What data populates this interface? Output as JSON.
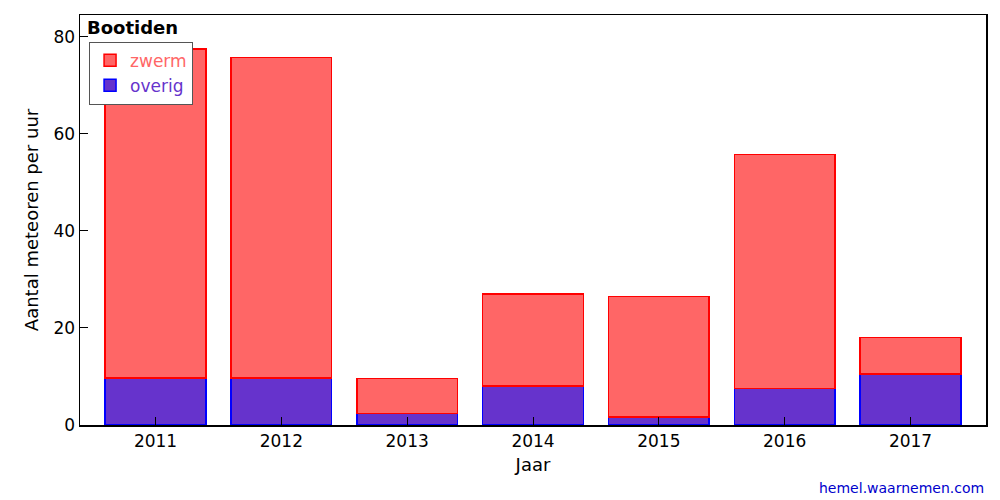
{
  "chart_data": {
    "type": "bar",
    "title": "Bootiden",
    "x_label": "Jaar",
    "y_label": "Aantal meteoren per uur",
    "annotations": [
      "hemel.waarnemen.com"
    ],
    "categories": [
      "2011",
      "2012",
      "2013",
      "2014",
      "2015",
      "2016",
      "2017"
    ],
    "series": [
      {
        "name": "zwerm",
        "color": "#ff6666",
        "values": [
          67.8,
          66.0,
          7.2,
          19.0,
          24.8,
          48.2,
          7.5
        ]
      },
      {
        "name": "overig",
        "color": "#6633cc",
        "values": [
          9.7,
          9.7,
          2.4,
          8.0,
          1.7,
          7.5,
          10.5
        ]
      }
    ],
    "stacked": true,
    "ylim": [
      0,
      84.5
    ],
    "yticks": [
      0,
      20,
      40,
      60,
      80
    ],
    "grid": false,
    "legend": "top-left"
  }
}
